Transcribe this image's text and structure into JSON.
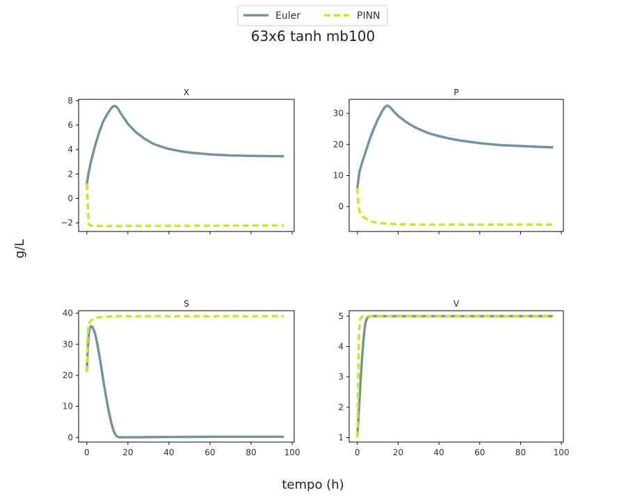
{
  "title": "63x6 tanh mb100",
  "xlabel": "tempo (h)",
  "ylabel": "g/L",
  "legend": {
    "placement": "top-center",
    "entries": [
      {
        "label": "Euler",
        "color": "#7393a1",
        "dash": "solid"
      },
      {
        "label": "PINN",
        "color": "#cfe71a",
        "dash": "dashed"
      }
    ]
  },
  "chart_data": [
    {
      "type": "line",
      "title": "X",
      "xlim": [
        -4,
        101
      ],
      "ylim": [
        -2.7,
        8.1
      ],
      "xticks": [
        0,
        20,
        40,
        60,
        80,
        100
      ],
      "yticks": [
        -2,
        0,
        2,
        4,
        6,
        8
      ],
      "show_xticklabels": false,
      "series": [
        {
          "name": "Euler",
          "x": [
            0,
            1,
            2,
            4,
            6,
            8,
            10,
            12,
            13,
            14,
            15,
            16,
            18,
            20,
            24,
            28,
            32,
            36,
            40,
            45,
            50,
            60,
            70,
            80,
            90,
            96
          ],
          "y": [
            1.2,
            2.2,
            3.0,
            4.3,
            5.4,
            6.3,
            6.9,
            7.4,
            7.55,
            7.55,
            7.4,
            7.1,
            6.6,
            6.1,
            5.4,
            4.9,
            4.5,
            4.25,
            4.05,
            3.88,
            3.75,
            3.6,
            3.52,
            3.48,
            3.46,
            3.45
          ]
        },
        {
          "name": "PINN",
          "x": [
            0,
            0.3,
            0.6,
            1,
            1.5,
            3,
            10,
            20,
            40,
            60,
            80,
            96
          ],
          "y": [
            1.2,
            0.2,
            -1.2,
            -2.1,
            -2.2,
            -2.25,
            -2.25,
            -2.25,
            -2.24,
            -2.23,
            -2.22,
            -2.22
          ]
        }
      ]
    },
    {
      "type": "line",
      "title": "P",
      "xlim": [
        -4,
        101
      ],
      "ylim": [
        -8,
        34.5
      ],
      "xticks": [
        0,
        20,
        40,
        60,
        80,
        100
      ],
      "yticks": [
        0,
        10,
        20,
        30
      ],
      "show_xticklabels": false,
      "series": [
        {
          "name": "Euler",
          "x": [
            0,
            1,
            2,
            4,
            6,
            8,
            10,
            12,
            13,
            14,
            15,
            16,
            18,
            20,
            24,
            28,
            32,
            36,
            40,
            45,
            50,
            60,
            70,
            80,
            90,
            96
          ],
          "y": [
            6,
            11,
            13.5,
            17.5,
            21.5,
            25,
            28,
            30.5,
            31.6,
            32.3,
            32.5,
            32,
            30.5,
            29.2,
            27.2,
            25.6,
            24.4,
            23.4,
            22.7,
            21.9,
            21.3,
            20.4,
            19.8,
            19.5,
            19.2,
            19.1
          ]
        },
        {
          "name": "PINN",
          "x": [
            0,
            0.3,
            0.6,
            1,
            2,
            3,
            5,
            7,
            10,
            14,
            20,
            30,
            40,
            60,
            80,
            96
          ],
          "y": [
            6,
            3,
            0,
            -1.5,
            -2.5,
            -3.3,
            -4.2,
            -4.8,
            -5.2,
            -5.5,
            -5.7,
            -5.8,
            -5.8,
            -5.8,
            -5.8,
            -5.8
          ]
        }
      ]
    },
    {
      "type": "line",
      "title": "S",
      "xlim": [
        -4,
        101
      ],
      "ylim": [
        -1.5,
        40.8
      ],
      "xticks": [
        0,
        20,
        40,
        60,
        80,
        100
      ],
      "yticks": [
        0,
        10,
        20,
        30,
        40
      ],
      "show_xticklabels": true,
      "series": [
        {
          "name": "Euler",
          "x": [
            0,
            0.5,
            1,
            1.5,
            2,
            2.5,
            3,
            4,
            5,
            6,
            7,
            8,
            9,
            10,
            11,
            12,
            13,
            14,
            15,
            16,
            18,
            20,
            30,
            40,
            60,
            80,
            96
          ],
          "y": [
            21,
            29,
            33.5,
            35.3,
            35.8,
            35.7,
            35.2,
            33.5,
            30.5,
            26.8,
            22.8,
            18.5,
            14.5,
            10.8,
            7.4,
            4.5,
            2.2,
            0.8,
            0.2,
            0.05,
            0.05,
            0.05,
            0.1,
            0.15,
            0.2,
            0.2,
            0.2
          ]
        },
        {
          "name": "PINN",
          "x": [
            0,
            0.3,
            0.6,
            1,
            1.5,
            2,
            3,
            4,
            6,
            8,
            10,
            15,
            20,
            40,
            60,
            80,
            96
          ],
          "y": [
            21,
            30,
            34.5,
            36.5,
            37.2,
            37.6,
            38.1,
            38.4,
            38.7,
            38.8,
            38.9,
            39,
            39,
            39,
            39,
            39,
            39
          ]
        }
      ]
    },
    {
      "type": "line",
      "title": "V",
      "xlim": [
        -4,
        101
      ],
      "ylim": [
        0.85,
        5.18
      ],
      "xticks": [
        0,
        20,
        40,
        60,
        80,
        100
      ],
      "yticks": [
        1,
        2,
        3,
        4,
        5
      ],
      "show_xticklabels": true,
      "series": [
        {
          "name": "Euler",
          "x": [
            0,
            0.5,
            1,
            1.5,
            2,
            2.5,
            3,
            3.5,
            4,
            4.5,
            5,
            6,
            8,
            10,
            20,
            40,
            60,
            80,
            96
          ],
          "y": [
            1.0,
            1.6,
            2.2,
            2.75,
            3.3,
            3.8,
            4.2,
            4.55,
            4.78,
            4.9,
            4.96,
            4.99,
            5.0,
            5.0,
            5.0,
            5.0,
            5.0,
            5.0,
            5.0
          ]
        },
        {
          "name": "PINN",
          "x": [
            0,
            0.2,
            0.4,
            0.6,
            0.8,
            1,
            1.3,
            1.6,
            2,
            3,
            5,
            10,
            20,
            40,
            60,
            80,
            96
          ],
          "y": [
            1.0,
            1.8,
            2.8,
            3.7,
            4.3,
            4.65,
            4.85,
            4.93,
            4.97,
            4.99,
            5.0,
            5.0,
            5.0,
            5.0,
            5.0,
            5.0,
            5.0
          ]
        }
      ]
    }
  ]
}
